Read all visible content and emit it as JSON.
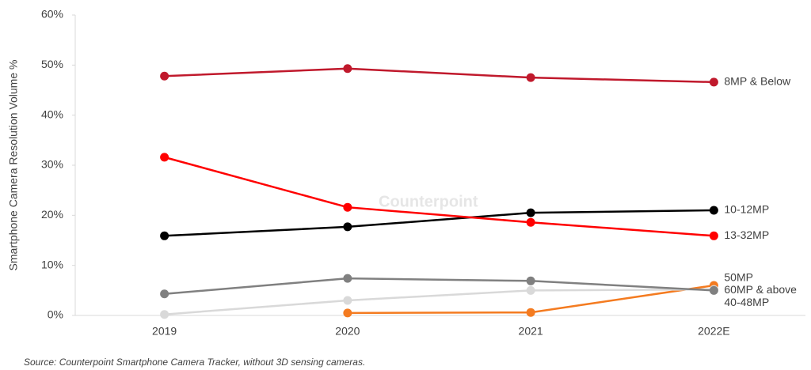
{
  "chart_data": {
    "type": "line",
    "y_label": "Smartphone Camera Resolution Volume %",
    "source": "Source: Counterpoint Smartphone Camera Tracker, without 3D sensing cameras.",
    "watermark": "Counterpoint",
    "categories": [
      "2019",
      "2020",
      "2021",
      "2022E"
    ],
    "ylim": [
      0,
      60
    ],
    "yticks": [
      {
        "value": 0,
        "label": "0%"
      },
      {
        "value": 10,
        "label": "10%"
      },
      {
        "value": 20,
        "label": "20%"
      },
      {
        "value": 30,
        "label": "30%"
      },
      {
        "value": 40,
        "label": "40%"
      },
      {
        "value": 50,
        "label": "50%"
      },
      {
        "value": 60,
        "label": "60%"
      }
    ],
    "grid": false,
    "series": [
      {
        "name": "8MP & Below",
        "color": "#c0192c",
        "values": [
          47.8,
          49.3,
          47.5,
          46.6
        ]
      },
      {
        "name": "10-12MP",
        "color": "#000000",
        "values": [
          15.9,
          17.7,
          20.5,
          21.0
        ]
      },
      {
        "name": "13-32MP",
        "color": "#ff0000",
        "values": [
          31.6,
          21.6,
          18.6,
          15.9
        ]
      },
      {
        "name": "50MP",
        "color": "#f47b20",
        "values": [
          null,
          0.5,
          0.6,
          6.0
        ]
      },
      {
        "name": "60MP & above",
        "color": "#d9d9d9",
        "values": [
          0.2,
          3.0,
          5.0,
          5.2
        ]
      },
      {
        "name": "40-48MP",
        "color": "#808080",
        "values": [
          4.3,
          7.4,
          6.9,
          5.0
        ]
      }
    ]
  }
}
